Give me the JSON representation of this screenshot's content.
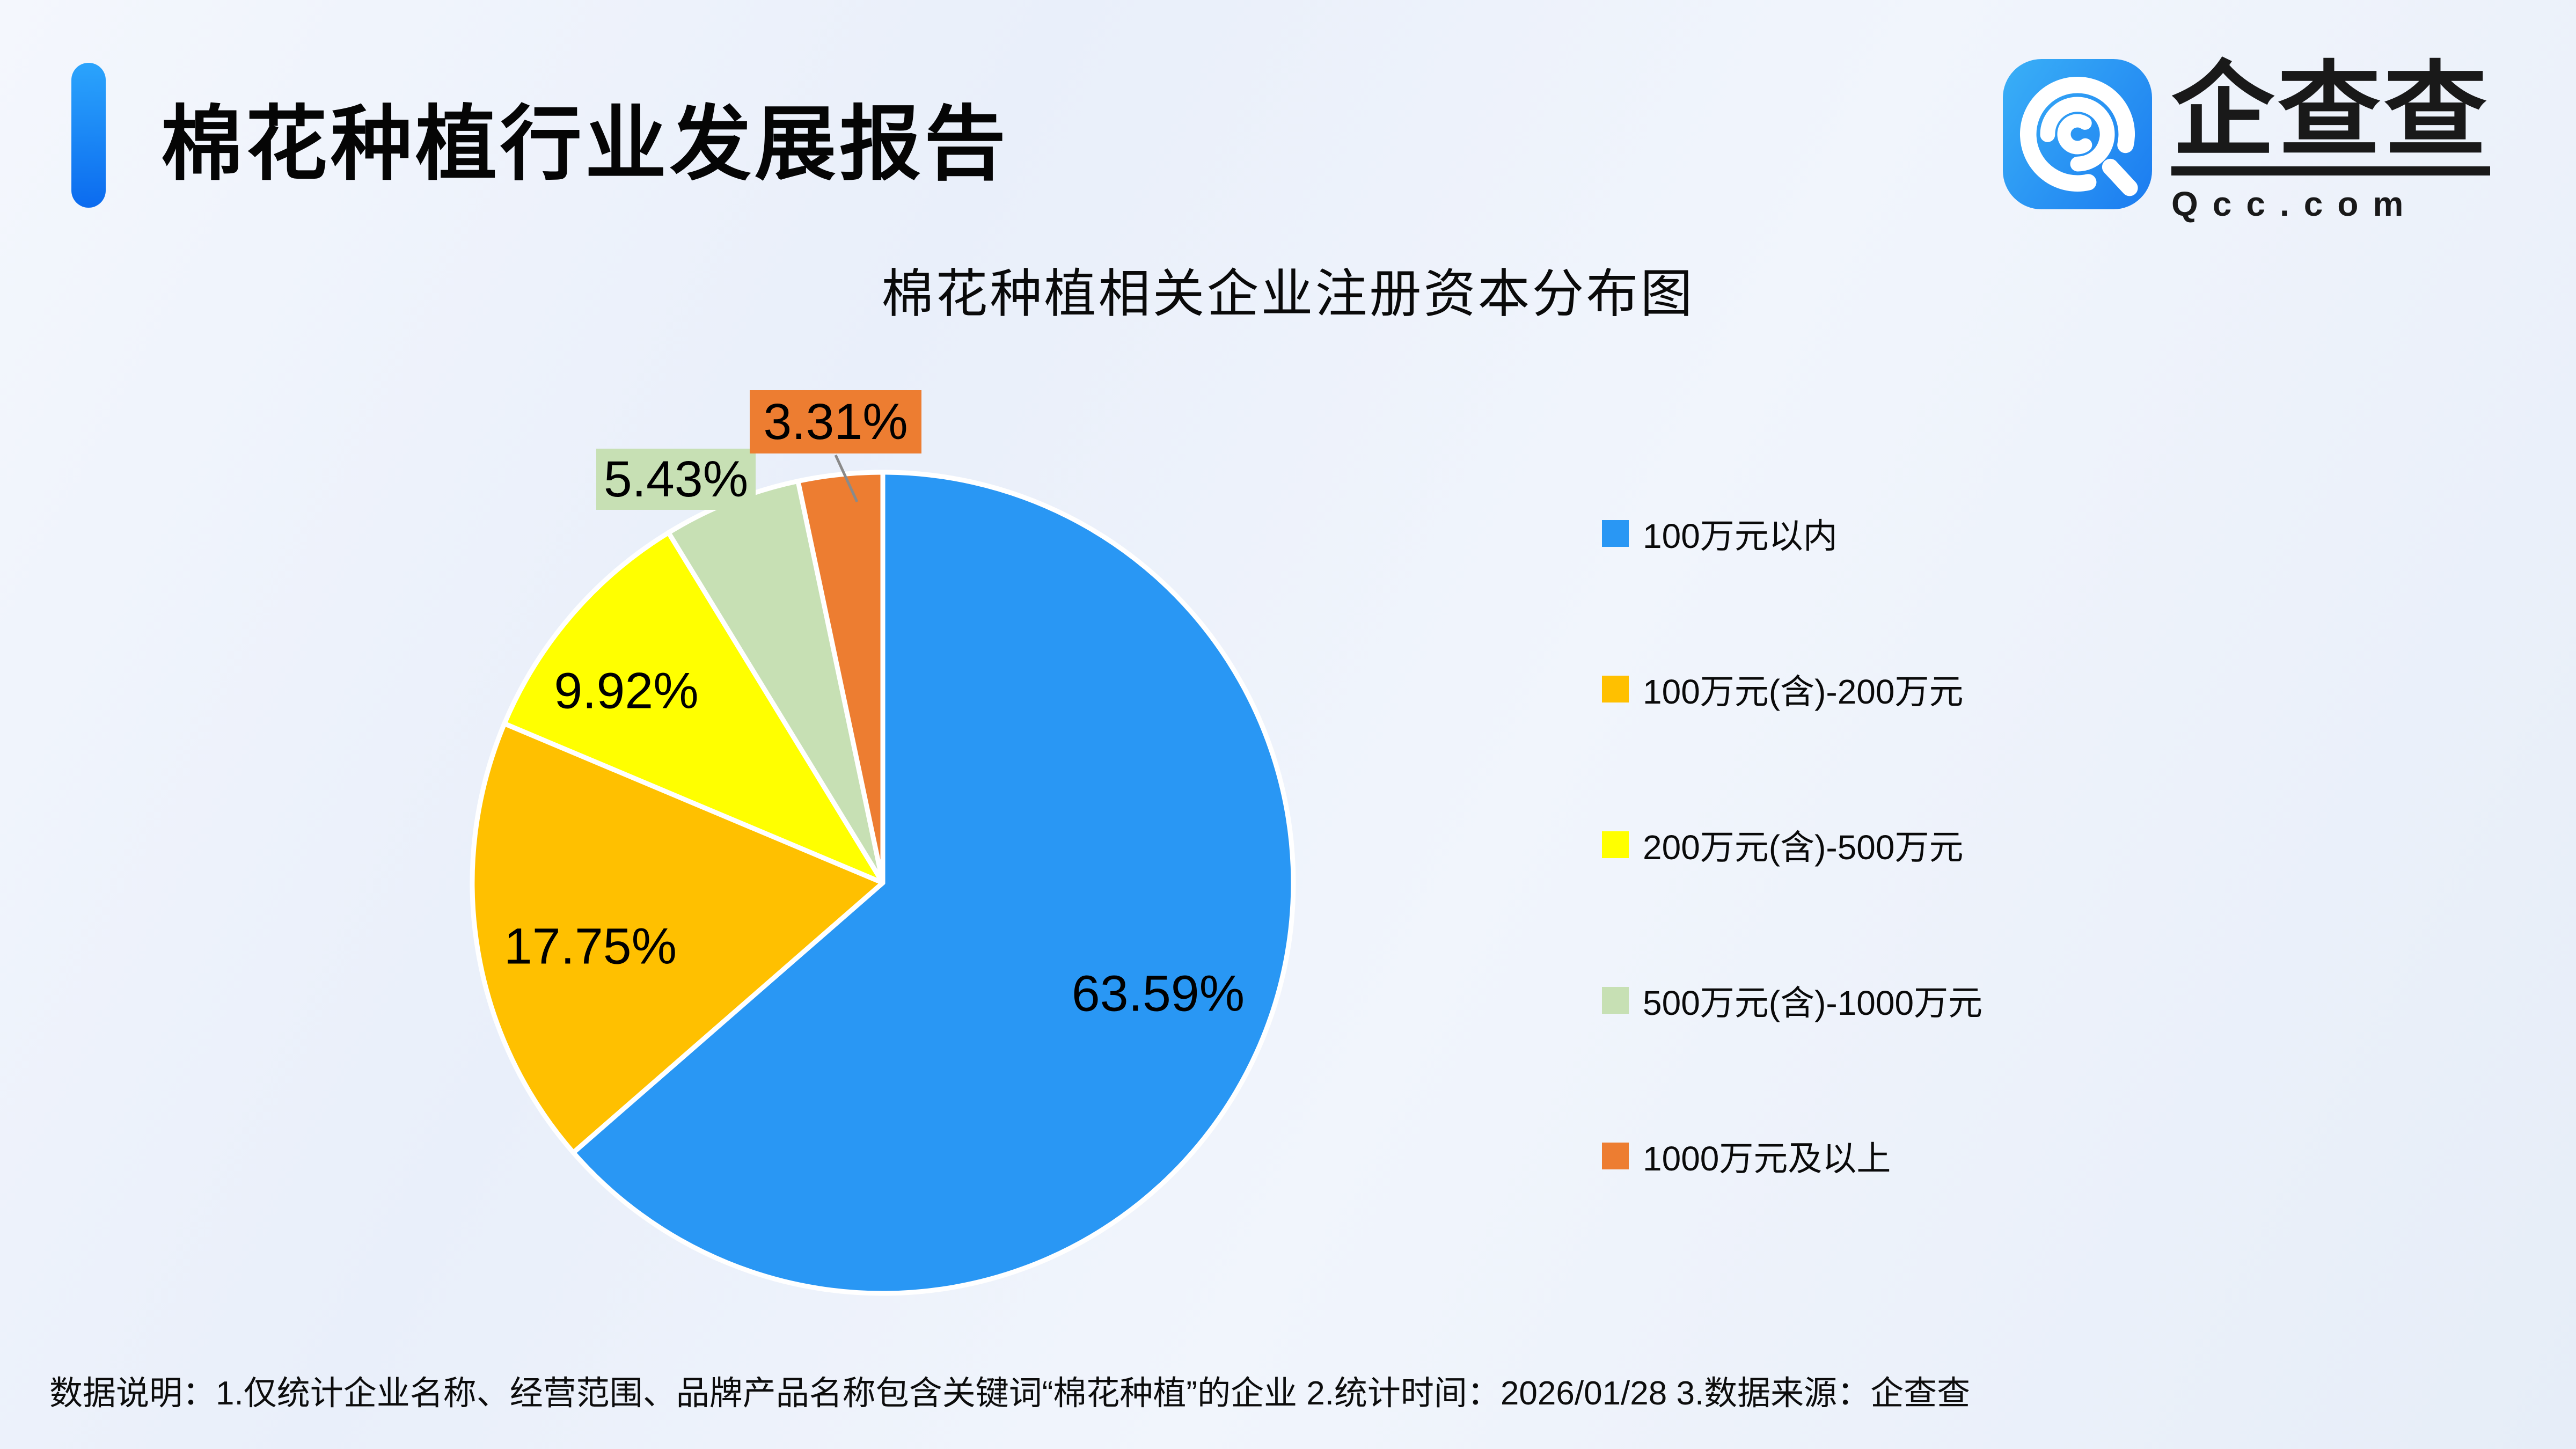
{
  "header": {
    "title": "棉花种植行业发展报告",
    "logo": {
      "brand": "企查查",
      "domain": "Qcc.com"
    }
  },
  "chart_data": {
    "type": "pie",
    "title": "棉花种植相关企业注册资本分布图",
    "legend_position": "right",
    "start_angle_deg": -90,
    "direction": "clockwise",
    "slices": [
      {
        "label": "100万元以内",
        "value": 63.59,
        "display": "63.59%",
        "color": "#2997F4",
        "label_style": "inside"
      },
      {
        "label": "100万元(含)-200万元",
        "value": 17.75,
        "display": "17.75%",
        "color": "#FFC000",
        "label_style": "inside"
      },
      {
        "label": "200万元(含)-500万元",
        "value": 9.92,
        "display": "9.92%",
        "color": "#FFFF00",
        "label_style": "inside"
      },
      {
        "label": "500万元(含)-1000万元",
        "value": 5.43,
        "display": "5.43%",
        "color": "#C7E0B4",
        "label_style": "box"
      },
      {
        "label": "1000万元及以上",
        "value": 3.31,
        "display": "3.31%",
        "color": "#ED7D31",
        "label_style": "box-callout"
      }
    ]
  },
  "footer": {
    "note": "数据说明：1.仅统计企业名称、经营范围、品牌产品名称包含关键词“棉花种植”的企业  2.统计时间：2026/01/28  3.数据来源：企查查"
  }
}
